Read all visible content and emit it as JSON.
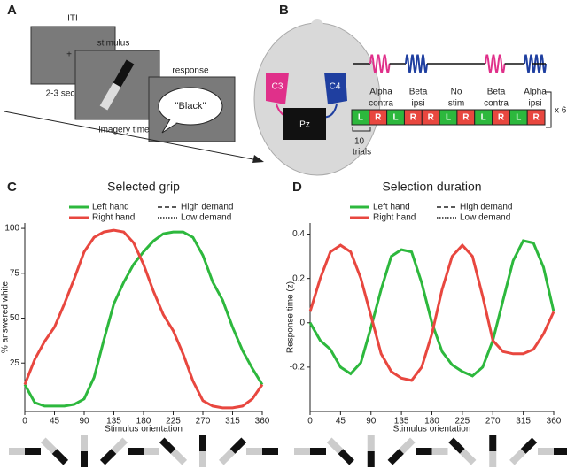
{
  "panel_a": {
    "label": "A",
    "iti": "ITI",
    "fixation": "+",
    "iti_duration": "2-3 sec",
    "stimulus": "stimulus",
    "imagery_time": "imagery time",
    "response": "response",
    "response_text": "\"Black\""
  },
  "panel_b": {
    "label": "B",
    "electrodes": [
      "C3",
      "C4",
      "Pz"
    ],
    "conditions": [
      [
        "Alpha",
        "contra"
      ],
      [
        "Beta",
        "ipsi"
      ],
      [
        "No",
        "stim"
      ],
      [
        "Beta",
        "contra"
      ],
      [
        "Alpha",
        "ipsi"
      ]
    ],
    "trial_letters": [
      "L",
      "R",
      "L",
      "R",
      "R",
      "L",
      "R",
      "L",
      "R",
      "L",
      "R"
    ],
    "trials_count": "10",
    "trials_label": "trials",
    "repeat": "x 6"
  },
  "chart_data": [
    {
      "type": "line",
      "panel_label": "C",
      "title": "Selected grip",
      "x_label": "Stimulus orientation",
      "y_label": "% answered white",
      "x": [
        0,
        15,
        30,
        45,
        60,
        75,
        90,
        105,
        120,
        135,
        150,
        165,
        180,
        195,
        210,
        225,
        240,
        255,
        270,
        285,
        300,
        315,
        330,
        345,
        360
      ],
      "series": [
        {
          "name": "Left hand",
          "color": "#2db83d",
          "values": [
            13,
            3,
            1,
            1,
            1,
            2,
            5,
            17,
            38,
            58,
            70,
            80,
            87,
            93,
            97,
            98,
            98,
            95,
            85,
            70,
            60,
            45,
            32,
            22,
            13
          ]
        },
        {
          "name": "Right hand",
          "color": "#e8473f",
          "values": [
            13,
            27,
            37,
            45,
            58,
            72,
            87,
            95,
            98,
            99,
            98,
            92,
            80,
            65,
            52,
            43,
            30,
            15,
            4,
            1,
            0,
            0,
            1,
            5,
            13
          ]
        }
      ],
      "line_styles": [
        {
          "name": "High demand",
          "dash": "5,3"
        },
        {
          "name": "Low demand",
          "dash": "1.5,1.5"
        }
      ],
      "xlim": [
        0,
        360
      ],
      "xticks": [
        0,
        45,
        90,
        135,
        180,
        225,
        270,
        315,
        360
      ],
      "ylim": [
        -2,
        103
      ],
      "yticks": [
        25,
        50,
        75,
        100
      ]
    },
    {
      "type": "line",
      "panel_label": "D",
      "title": "Selection duration",
      "x_label": "Stimulus orientation",
      "y_label": "Response time (z)",
      "x": [
        0,
        15,
        30,
        45,
        60,
        75,
        90,
        105,
        120,
        135,
        150,
        165,
        180,
        195,
        210,
        225,
        240,
        255,
        270,
        285,
        300,
        315,
        330,
        345,
        360
      ],
      "series": [
        {
          "name": "Left hand",
          "color": "#2db83d",
          "values": [
            0,
            -0.08,
            -0.12,
            -0.2,
            -0.23,
            -0.18,
            -0.02,
            0.15,
            0.3,
            0.33,
            0.32,
            0.18,
            0,
            -0.13,
            -0.19,
            -0.22,
            -0.24,
            -0.2,
            -0.08,
            0.1,
            0.28,
            0.37,
            0.36,
            0.25,
            0.05
          ]
        },
        {
          "name": "Right hand",
          "color": "#e8473f",
          "values": [
            0.05,
            0.2,
            0.32,
            0.35,
            0.32,
            0.2,
            0.03,
            -0.14,
            -0.22,
            -0.25,
            -0.26,
            -0.2,
            -0.05,
            0.15,
            0.3,
            0.35,
            0.3,
            0.12,
            -0.08,
            -0.13,
            -0.14,
            -0.14,
            -0.12,
            -0.05,
            0.05
          ]
        }
      ],
      "line_styles": [
        {
          "name": "High demand",
          "dash": "5,3"
        },
        {
          "name": "Low demand",
          "dash": "1.5,1.5"
        }
      ],
      "xlim": [
        0,
        360
      ],
      "xticks": [
        0,
        45,
        90,
        135,
        180,
        225,
        270,
        315,
        360
      ],
      "ylim": [
        -0.4,
        0.45
      ],
      "yticks": [
        {
          "value": -0.2,
          "label": "-0.2"
        },
        0,
        0.2,
        0.4
      ]
    }
  ]
}
